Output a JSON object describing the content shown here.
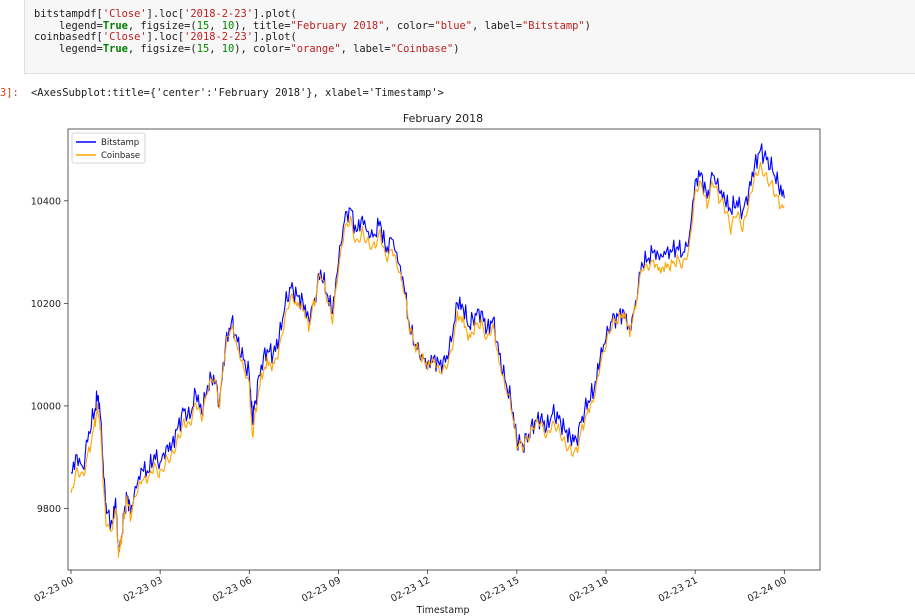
{
  "cell": {
    "prompt": "3]:",
    "code_lines": [
      [
        "bitstampdf[",
        {
          "s": "'Close'"
        },
        "].loc[",
        {
          "s": "'2018-2-23'"
        },
        "].plot("
      ],
      [
        "    legend=",
        {
          "k": "True"
        },
        ", figsize=(",
        {
          "n": "15"
        },
        ", ",
        {
          "n": "10"
        },
        "), title=",
        {
          "s": "\"February 2018\""
        },
        ", color=",
        {
          "s": "\"blue\""
        },
        ", label=",
        {
          "s": "\"Bitstamp\""
        },
        ")"
      ],
      [
        "coinbasedf[",
        {
          "s": "'Close'"
        },
        "].loc[",
        {
          "s": "'2018-2-23'"
        },
        "].plot("
      ],
      [
        "    legend=",
        {
          "k": "True"
        },
        ", figsize=(",
        {
          "n": "15"
        },
        ", ",
        {
          "n": "10"
        },
        "), color=",
        {
          "s": "\"orange\""
        },
        ", label=",
        {
          "s": "\"Coinbase\""
        },
        ")"
      ]
    ],
    "output_text": "<AxesSubplot:title={'center':'February 2018'}, xlabel='Timestamp'>"
  },
  "chart_data": {
    "type": "line",
    "title": "February 2018",
    "xlabel": "Timestamp",
    "ylabel": "",
    "x_ticks": [
      "02-23 00",
      "02-23 03",
      "02-23 06",
      "02-23 09",
      "02-23 12",
      "02-23 15",
      "02-23 18",
      "02-23 21",
      "02-24 00"
    ],
    "x_tick_hours": [
      0,
      3,
      6,
      9,
      12,
      15,
      18,
      21,
      24
    ],
    "y_ticks": [
      9800,
      10000,
      10200,
      10400
    ],
    "ylim": [
      9680,
      10540
    ],
    "xlim_hours": [
      -0.1,
      25.2
    ],
    "legend_position": "upper-left",
    "series": [
      {
        "name": "Bitstamp",
        "color": "#0000ff",
        "points": [
          [
            0,
            9870
          ],
          [
            0.2,
            9905
          ],
          [
            0.4,
            9880
          ],
          [
            0.6,
            9950
          ],
          [
            0.8,
            9990
          ],
          [
            0.9,
            10020
          ],
          [
            1.0,
            9975
          ],
          [
            1.1,
            9860
          ],
          [
            1.2,
            9790
          ],
          [
            1.4,
            9770
          ],
          [
            1.5,
            9820
          ],
          [
            1.6,
            9720
          ],
          [
            1.7,
            9745
          ],
          [
            1.8,
            9800
          ],
          [
            1.9,
            9825
          ],
          [
            2.0,
            9790
          ],
          [
            2.2,
            9840
          ],
          [
            2.4,
            9875
          ],
          [
            2.6,
            9870
          ],
          [
            2.8,
            9905
          ],
          [
            3.0,
            9890
          ],
          [
            3.2,
            9920
          ],
          [
            3.4,
            9925
          ],
          [
            3.6,
            9960
          ],
          [
            3.8,
            9990
          ],
          [
            4.0,
            9975
          ],
          [
            4.2,
            10025
          ],
          [
            4.4,
            9985
          ],
          [
            4.6,
            10040
          ],
          [
            4.8,
            10060
          ],
          [
            5.0,
            10010
          ],
          [
            5.2,
            10120
          ],
          [
            5.4,
            10165
          ],
          [
            5.6,
            10125
          ],
          [
            5.8,
            10090
          ],
          [
            6.0,
            10060
          ],
          [
            6.1,
            9975
          ],
          [
            6.2,
            10010
          ],
          [
            6.4,
            10080
          ],
          [
            6.6,
            10110
          ],
          [
            6.8,
            10100
          ],
          [
            7.0,
            10130
          ],
          [
            7.2,
            10195
          ],
          [
            7.4,
            10230
          ],
          [
            7.6,
            10215
          ],
          [
            7.8,
            10205
          ],
          [
            8.0,
            10170
          ],
          [
            8.2,
            10210
          ],
          [
            8.4,
            10265
          ],
          [
            8.6,
            10220
          ],
          [
            8.8,
            10180
          ],
          [
            9.0,
            10280
          ],
          [
            9.2,
            10360
          ],
          [
            9.4,
            10385
          ],
          [
            9.6,
            10340
          ],
          [
            9.8,
            10370
          ],
          [
            10.0,
            10340
          ],
          [
            10.2,
            10335
          ],
          [
            10.4,
            10360
          ],
          [
            10.6,
            10300
          ],
          [
            10.8,
            10325
          ],
          [
            11.0,
            10280
          ],
          [
            11.2,
            10235
          ],
          [
            11.4,
            10150
          ],
          [
            11.6,
            10120
          ],
          [
            11.8,
            10100
          ],
          [
            12.0,
            10085
          ],
          [
            12.2,
            10095
          ],
          [
            12.4,
            10080
          ],
          [
            12.6,
            10085
          ],
          [
            12.8,
            10125
          ],
          [
            13.0,
            10200
          ],
          [
            13.2,
            10190
          ],
          [
            13.4,
            10155
          ],
          [
            13.6,
            10180
          ],
          [
            13.8,
            10185
          ],
          [
            14.0,
            10150
          ],
          [
            14.2,
            10170
          ],
          [
            14.4,
            10100
          ],
          [
            14.6,
            10050
          ],
          [
            14.8,
            10010
          ],
          [
            15.0,
            9935
          ],
          [
            15.2,
            9925
          ],
          [
            15.4,
            9945
          ],
          [
            15.6,
            9970
          ],
          [
            15.8,
            9975
          ],
          [
            16.0,
            9955
          ],
          [
            16.2,
            9985
          ],
          [
            16.4,
            9975
          ],
          [
            16.6,
            9955
          ],
          [
            16.8,
            9940
          ],
          [
            17.0,
            9935
          ],
          [
            17.2,
            9980
          ],
          [
            17.4,
            10010
          ],
          [
            17.6,
            10030
          ],
          [
            17.8,
            10090
          ],
          [
            18.0,
            10130
          ],
          [
            18.2,
            10165
          ],
          [
            18.4,
            10175
          ],
          [
            18.6,
            10185
          ],
          [
            18.8,
            10150
          ],
          [
            19.0,
            10205
          ],
          [
            19.2,
            10280
          ],
          [
            19.4,
            10285
          ],
          [
            19.6,
            10300
          ],
          [
            19.8,
            10285
          ],
          [
            20.0,
            10295
          ],
          [
            20.2,
            10300
          ],
          [
            20.4,
            10310
          ],
          [
            20.6,
            10300
          ],
          [
            20.8,
            10330
          ],
          [
            21.0,
            10440
          ],
          [
            21.2,
            10455
          ],
          [
            21.4,
            10405
          ],
          [
            21.6,
            10450
          ],
          [
            21.8,
            10420
          ],
          [
            22.0,
            10400
          ],
          [
            22.2,
            10380
          ],
          [
            22.4,
            10400
          ],
          [
            22.6,
            10380
          ],
          [
            22.8,
            10420
          ],
          [
            23.0,
            10470
          ],
          [
            23.2,
            10500
          ],
          [
            23.4,
            10480
          ],
          [
            23.6,
            10460
          ],
          [
            23.8,
            10430
          ],
          [
            24.0,
            10405
          ]
        ]
      },
      {
        "name": "Coinbase",
        "color": "#ffa500",
        "points": [
          [
            0,
            9830
          ],
          [
            0.2,
            9880
          ],
          [
            0.4,
            9870
          ],
          [
            0.6,
            9920
          ],
          [
            0.8,
            9975
          ],
          [
            0.9,
            10005
          ],
          [
            1.0,
            9960
          ],
          [
            1.1,
            9840
          ],
          [
            1.2,
            9765
          ],
          [
            1.4,
            9760
          ],
          [
            1.5,
            9800
          ],
          [
            1.6,
            9705
          ],
          [
            1.7,
            9730
          ],
          [
            1.8,
            9780
          ],
          [
            1.9,
            9810
          ],
          [
            2.0,
            9775
          ],
          [
            2.2,
            9825
          ],
          [
            2.4,
            9855
          ],
          [
            2.6,
            9860
          ],
          [
            2.8,
            9890
          ],
          [
            3.0,
            9875
          ],
          [
            3.2,
            9905
          ],
          [
            3.4,
            9915
          ],
          [
            3.6,
            9945
          ],
          [
            3.8,
            9975
          ],
          [
            4.0,
            9965
          ],
          [
            4.2,
            10005
          ],
          [
            4.4,
            9970
          ],
          [
            4.6,
            10025
          ],
          [
            4.8,
            10045
          ],
          [
            5.0,
            9995
          ],
          [
            5.2,
            10105
          ],
          [
            5.4,
            10150
          ],
          [
            5.6,
            10110
          ],
          [
            5.8,
            10075
          ],
          [
            6.0,
            10045
          ],
          [
            6.1,
            9945
          ],
          [
            6.2,
            9995
          ],
          [
            6.4,
            10065
          ],
          [
            6.6,
            10095
          ],
          [
            6.8,
            10085
          ],
          [
            7.0,
            10115
          ],
          [
            7.2,
            10175
          ],
          [
            7.4,
            10215
          ],
          [
            7.6,
            10195
          ],
          [
            7.8,
            10185
          ],
          [
            8.0,
            10145
          ],
          [
            8.2,
            10195
          ],
          [
            8.4,
            10250
          ],
          [
            8.6,
            10205
          ],
          [
            8.8,
            10160
          ],
          [
            9.0,
            10265
          ],
          [
            9.2,
            10345
          ],
          [
            9.4,
            10370
          ],
          [
            9.6,
            10325
          ],
          [
            9.8,
            10350
          ],
          [
            10.0,
            10330
          ],
          [
            10.2,
            10320
          ],
          [
            10.4,
            10345
          ],
          [
            10.6,
            10290
          ],
          [
            10.8,
            10305
          ],
          [
            11.0,
            10265
          ],
          [
            11.2,
            10220
          ],
          [
            11.4,
            10140
          ],
          [
            11.6,
            10105
          ],
          [
            11.8,
            10085
          ],
          [
            12.0,
            10070
          ],
          [
            12.2,
            10085
          ],
          [
            12.4,
            10065
          ],
          [
            12.6,
            10075
          ],
          [
            12.8,
            10110
          ],
          [
            13.0,
            10185
          ],
          [
            13.2,
            10175
          ],
          [
            13.4,
            10140
          ],
          [
            13.6,
            10165
          ],
          [
            13.8,
            10170
          ],
          [
            14.0,
            10135
          ],
          [
            14.2,
            10160
          ],
          [
            14.4,
            10085
          ],
          [
            14.6,
            10035
          ],
          [
            14.8,
            9995
          ],
          [
            15.0,
            9915
          ],
          [
            15.2,
            9910
          ],
          [
            15.4,
            9930
          ],
          [
            15.6,
            9955
          ],
          [
            15.8,
            9965
          ],
          [
            16.0,
            9940
          ],
          [
            16.2,
            9970
          ],
          [
            16.4,
            9965
          ],
          [
            16.6,
            9940
          ],
          [
            16.8,
            9925
          ],
          [
            17.0,
            9920
          ],
          [
            17.2,
            9965
          ],
          [
            17.4,
            9995
          ],
          [
            17.6,
            10015
          ],
          [
            17.8,
            10075
          ],
          [
            18.0,
            10115
          ],
          [
            18.2,
            10150
          ],
          [
            18.4,
            10160
          ],
          [
            18.6,
            10170
          ],
          [
            18.8,
            10135
          ],
          [
            19.0,
            10190
          ],
          [
            19.2,
            10265
          ],
          [
            19.4,
            10270
          ],
          [
            19.6,
            10285
          ],
          [
            19.8,
            10270
          ],
          [
            20.0,
            10280
          ],
          [
            20.2,
            10285
          ],
          [
            20.4,
            10295
          ],
          [
            20.6,
            10285
          ],
          [
            20.8,
            10315
          ],
          [
            21.0,
            10420
          ],
          [
            21.2,
            10435
          ],
          [
            21.4,
            10385
          ],
          [
            21.6,
            10430
          ],
          [
            21.8,
            10395
          ],
          [
            22.0,
            10375
          ],
          [
            22.2,
            10335
          ],
          [
            22.4,
            10370
          ],
          [
            22.6,
            10340
          ],
          [
            22.8,
            10395
          ],
          [
            23.0,
            10450
          ],
          [
            23.2,
            10475
          ],
          [
            23.4,
            10455
          ],
          [
            23.6,
            10440
          ],
          [
            23.8,
            10410
          ],
          [
            24.0,
            10390
          ]
        ]
      }
    ]
  }
}
